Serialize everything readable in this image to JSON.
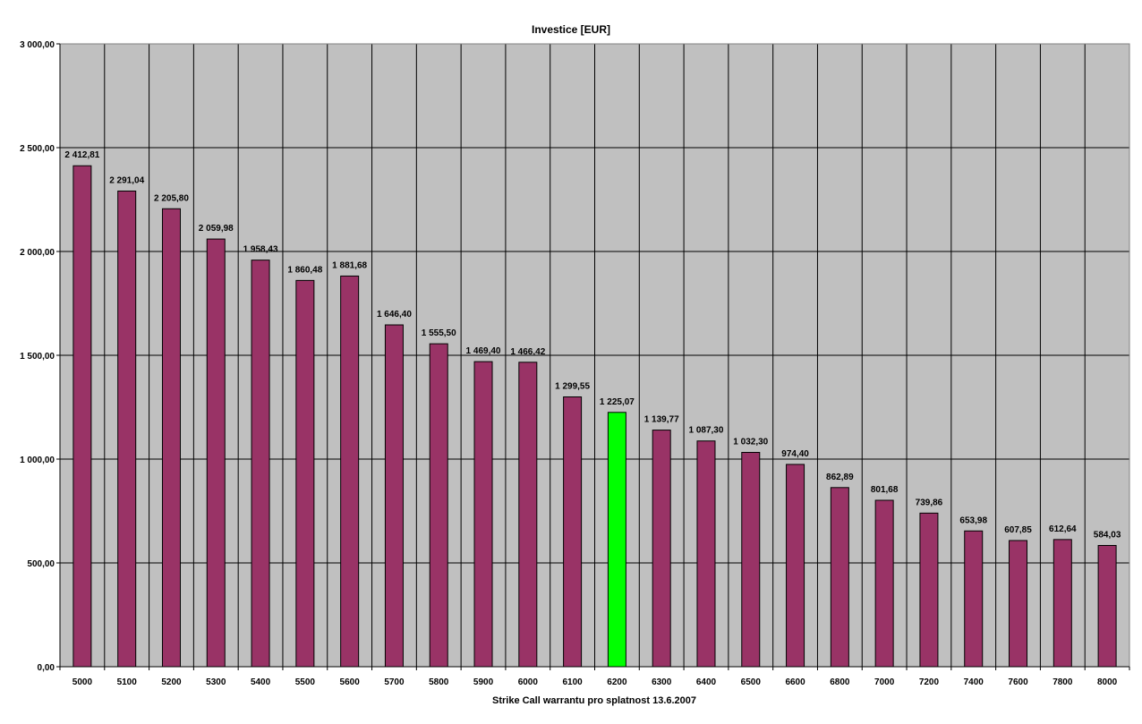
{
  "chart_data": {
    "type": "bar",
    "title": "Investice [EUR]",
    "xlabel": "Strike Call warrantu pro splatnost 13.6.2007",
    "ylabel": "",
    "ylim": [
      0,
      3000
    ],
    "yticks": [
      0,
      500,
      1000,
      1500,
      2000,
      2500,
      3000
    ],
    "ytick_labels": [
      "0,00",
      "500,00",
      "1 000,00",
      "1 500,00",
      "2 000,00",
      "2 500,00",
      "3 000,00"
    ],
    "grid": true,
    "legend": "none",
    "categories": [
      "5000",
      "5100",
      "5200",
      "5300",
      "5400",
      "5500",
      "5600",
      "5700",
      "5800",
      "5900",
      "6000",
      "6100",
      "6200",
      "6300",
      "6400",
      "6500",
      "6600",
      "6800",
      "7000",
      "7200",
      "7400",
      "7600",
      "7800",
      "8000"
    ],
    "values": [
      2412.81,
      2291.04,
      2205.8,
      2059.98,
      1958.43,
      1860.48,
      1881.68,
      1646.4,
      1555.5,
      1469.4,
      1466.42,
      1299.55,
      1225.07,
      1139.77,
      1087.3,
      1032.3,
      974.4,
      862.89,
      801.68,
      739.86,
      653.98,
      607.85,
      612.64,
      584.03
    ],
    "data_labels": [
      "2 412,81",
      "2 291,04",
      "2 205,80",
      "2 059,98",
      "1 958,43",
      "1 860,48",
      "1 881,68",
      "1 646,40",
      "1 555,50",
      "1 469,40",
      "1 466,42",
      "1 299,55",
      "1 225,07",
      "1 139,77",
      "1 087,30",
      "1 032,30",
      "974,40",
      "862,89",
      "801,68",
      "739,86",
      "653,98",
      "607,85",
      "612,64",
      "584,03"
    ],
    "highlighted_category": "6200",
    "colors": {
      "bar": "#993366",
      "highlight": "#00ff00",
      "plot_background": "#c0c0c0",
      "grid": "#000000"
    }
  }
}
